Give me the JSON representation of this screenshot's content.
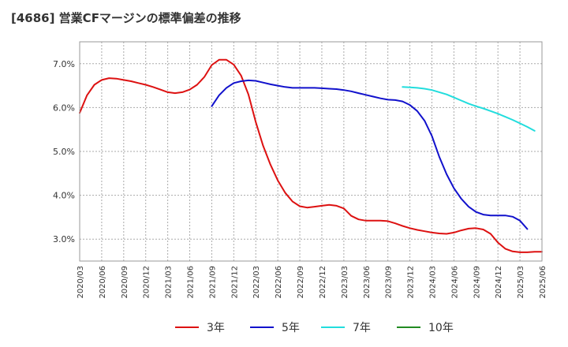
{
  "chart_data": {
    "type": "line",
    "title": "[4686]  営業CFマージンの標準偏差の推移",
    "xlabel": "",
    "ylabel": "",
    "ylim": [
      2.5,
      7.5
    ],
    "yticks": [
      "3.0%",
      "4.0%",
      "5.0%",
      "6.0%",
      "7.0%"
    ],
    "x_ticks": [
      "2020/03",
      "2020/06",
      "2020/09",
      "2020/12",
      "2021/03",
      "2021/06",
      "2021/09",
      "2021/12",
      "2022/03",
      "2022/06",
      "2022/09",
      "2022/12",
      "2023/03",
      "2023/06",
      "2023/09",
      "2023/12",
      "2024/03",
      "2024/06",
      "2024/09",
      "2024/12",
      "2025/03",
      "2025/06"
    ],
    "grid": true,
    "legend_position": "bottom",
    "series": [
      {
        "name": "3年",
        "color": "#dd1111",
        "start_index": 0,
        "values": [
          5.88,
          6.28,
          6.52,
          6.63,
          6.67,
          6.66,
          6.63,
          6.6,
          6.56,
          6.52,
          6.47,
          6.41,
          6.35,
          6.33,
          6.35,
          6.41,
          6.52,
          6.7,
          6.97,
          7.09,
          7.09,
          6.98,
          6.73,
          6.3,
          5.67,
          5.13,
          4.7,
          4.34,
          4.06,
          3.86,
          3.75,
          3.72,
          3.74,
          3.76,
          3.78,
          3.76,
          3.7,
          3.53,
          3.45,
          3.42,
          3.42,
          3.42,
          3.41,
          3.36,
          3.3,
          3.25,
          3.21,
          3.18,
          3.15,
          3.13,
          3.12,
          3.15,
          3.2,
          3.24,
          3.25,
          3.22,
          3.12,
          2.92,
          2.78,
          2.72,
          2.7,
          2.7,
          2.71,
          2.71
        ]
      },
      {
        "name": "5年",
        "color": "#1111cc",
        "start_index": 18,
        "values": [
          6.03,
          6.28,
          6.45,
          6.56,
          6.6,
          6.62,
          6.61,
          6.57,
          6.53,
          6.5,
          6.47,
          6.45,
          6.45,
          6.45,
          6.45,
          6.44,
          6.43,
          6.42,
          6.4,
          6.37,
          6.33,
          6.29,
          6.25,
          6.21,
          6.18,
          6.17,
          6.14,
          6.06,
          5.92,
          5.7,
          5.35,
          4.88,
          4.48,
          4.16,
          3.92,
          3.74,
          3.62,
          3.56,
          3.54,
          3.54,
          3.54,
          3.51,
          3.42,
          3.23
        ]
      },
      {
        "name": "7年",
        "color": "#22dddd",
        "start_index": 44,
        "values": [
          6.47,
          6.46,
          6.45,
          6.43,
          6.4,
          6.35,
          6.3,
          6.23,
          6.16,
          6.09,
          6.03,
          5.98,
          5.92,
          5.86,
          5.79,
          5.72,
          5.64,
          5.56,
          5.47
        ]
      },
      {
        "name": "10年",
        "color": "#228b22",
        "start_index": 0,
        "values": []
      }
    ]
  }
}
